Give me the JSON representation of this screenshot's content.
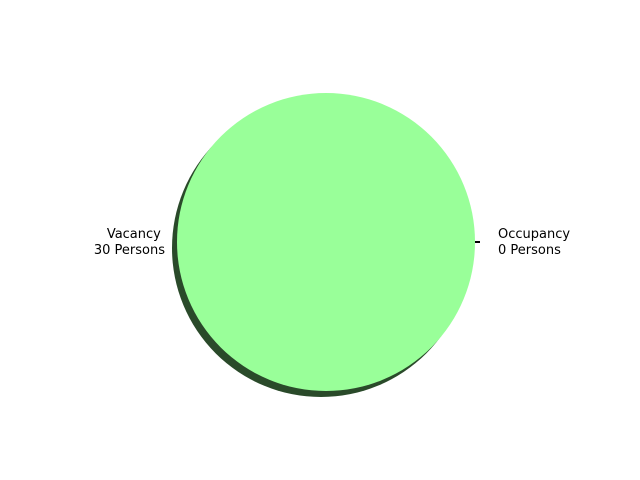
{
  "chart_data": {
    "type": "pie",
    "title": "",
    "shadow": true,
    "slices": [
      {
        "label_line1": "Occupancy",
        "label_line2": "0 Persons",
        "value": 0,
        "color": "#000000"
      },
      {
        "label_line1": "Vacancy",
        "label_line2": "30 Persons",
        "value": 30,
        "color": "#99ff99"
      }
    ]
  },
  "colors": {
    "shadow": "#2a4a2a",
    "background": "#ffffff"
  }
}
